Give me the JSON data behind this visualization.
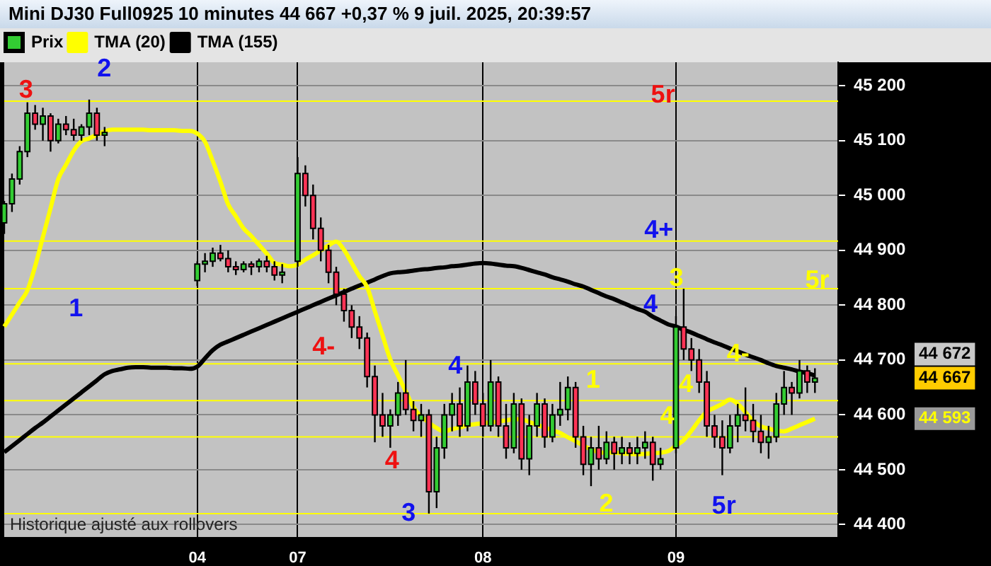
{
  "chart_data": {
    "type": "candlestick",
    "title": "Mini DJ30 Full0925 10 minutes 44 667 +0,37 % 9 juil. 2025, 20:39:57",
    "legend": "top left",
    "grid": true,
    "categories": [
      null,
      null,
      null,
      null,
      null,
      null,
      null,
      null,
      null,
      null,
      null,
      null,
      null,
      null,
      null,
      null,
      null,
      null,
      null,
      null,
      null,
      null,
      null,
      null,
      null,
      "04",
      null,
      null,
      null,
      null,
      null,
      null,
      null,
      null,
      null,
      null,
      null,
      null,
      "07",
      null,
      null,
      null,
      null,
      null,
      null,
      null,
      null,
      null,
      null,
      null,
      null,
      null,
      null,
      null,
      null,
      null,
      null,
      null,
      null,
      null,
      null,
      null,
      "08",
      null,
      null,
      null,
      null,
      null,
      null,
      null,
      null,
      null,
      null,
      null,
      null,
      null,
      null,
      null,
      null,
      null,
      null,
      null,
      null,
      null,
      null,
      null,
      null,
      "09",
      null,
      null,
      null,
      null,
      null,
      null,
      null,
      null,
      null,
      null,
      null,
      null,
      null,
      null,
      null,
      null,
      null,
      null,
      null,
      null,
      null
    ],
    "ylim": [
      44376,
      45243
    ],
    "yticks": [
      {
        "value": 44400,
        "label": "44 400"
      },
      {
        "value": 44500,
        "label": "44 500"
      },
      {
        "value": 44600,
        "label": "44 600"
      },
      {
        "value": 44700,
        "label": "44 700"
      },
      {
        "value": 44800,
        "label": "44 800"
      },
      {
        "value": 44900,
        "label": "44 900"
      },
      {
        "value": 45000,
        "label": "45 000"
      },
      {
        "value": 45100,
        "label": "45 100"
      },
      {
        "value": 45200,
        "label": "45 200"
      }
    ],
    "series": [
      {
        "name": "Prix",
        "ohlc": [
          [
            44950,
            44990,
            44930,
            44985
          ],
          [
            44985,
            45040,
            44970,
            45030
          ],
          [
            45030,
            45090,
            45020,
            45080
          ],
          [
            45080,
            45170,
            45070,
            45150
          ],
          [
            45150,
            45165,
            45120,
            45130
          ],
          [
            45130,
            45160,
            45100,
            45145
          ],
          [
            45145,
            45150,
            45080,
            45100
          ],
          [
            45100,
            45140,
            45095,
            45130
          ],
          [
            45130,
            45145,
            45110,
            45120
          ],
          [
            45120,
            45140,
            45100,
            45110
          ],
          [
            45110,
            45130,
            45100,
            45125
          ],
          [
            45125,
            45175,
            45110,
            45150
          ],
          [
            45150,
            45160,
            45100,
            45110
          ],
          [
            45110,
            45125,
            45090,
            45115
          ],
          null,
          null,
          null,
          null,
          null,
          null,
          null,
          null,
          null,
          null,
          null,
          [
            44845,
            44880,
            44835,
            44875
          ],
          [
            44875,
            44895,
            44860,
            44880
          ],
          [
            44880,
            44905,
            44870,
            44895
          ],
          [
            44895,
            44910,
            44880,
            44885
          ],
          [
            44885,
            44900,
            44860,
            44870
          ],
          [
            44870,
            44880,
            44855,
            44865
          ],
          [
            44865,
            44880,
            44860,
            44875
          ],
          [
            44875,
            44880,
            44855,
            44870
          ],
          [
            44870,
            44885,
            44860,
            44880
          ],
          [
            44880,
            44890,
            44860,
            44870
          ],
          [
            44870,
            44880,
            44845,
            44855
          ],
          [
            44855,
            44875,
            44840,
            44860
          ],
          null,
          [
            44880,
            45070,
            44870,
            45040
          ],
          [
            45040,
            45055,
            44980,
            45000
          ],
          [
            45000,
            45020,
            44920,
            44940
          ],
          [
            44940,
            44960,
            44880,
            44900
          ],
          [
            44900,
            44910,
            44840,
            44860
          ],
          [
            44860,
            44870,
            44800,
            44820
          ],
          [
            44820,
            44830,
            44770,
            44790
          ],
          [
            44790,
            44800,
            44740,
            44760
          ],
          [
            44760,
            44780,
            44720,
            44740
          ],
          [
            44740,
            44750,
            44650,
            44670
          ],
          [
            44670,
            44690,
            44550,
            44600
          ],
          [
            44600,
            44640,
            44560,
            44580
          ],
          [
            44580,
            44610,
            44540,
            44600
          ],
          [
            44600,
            44660,
            44580,
            44640
          ],
          [
            44640,
            44700,
            44600,
            44610
          ],
          [
            44610,
            44625,
            44570,
            44590
          ],
          [
            44590,
            44620,
            44560,
            44600
          ],
          [
            44600,
            44610,
            44420,
            44460
          ],
          [
            44460,
            44560,
            44430,
            44540
          ],
          [
            44540,
            44620,
            44520,
            44600
          ],
          [
            44600,
            44640,
            44570,
            44620
          ],
          [
            44620,
            44650,
            44560,
            44580
          ],
          [
            44580,
            44690,
            44570,
            44660
          ],
          [
            44660,
            44680,
            44600,
            44620
          ],
          [
            44620,
            44640,
            44560,
            44580
          ],
          [
            44580,
            44700,
            44570,
            44660
          ],
          [
            44660,
            44670,
            44560,
            44580
          ],
          [
            44580,
            44620,
            44520,
            44540
          ],
          [
            44540,
            44640,
            44530,
            44620
          ],
          [
            44620,
            44630,
            44500,
            44520
          ],
          [
            44520,
            44600,
            44490,
            44580
          ],
          [
            44580,
            44640,
            44560,
            44620
          ],
          [
            44620,
            44630,
            44540,
            44560
          ],
          [
            44560,
            44620,
            44550,
            44600
          ],
          [
            44600,
            44660,
            44580,
            44610
          ],
          [
            44610,
            44670,
            44590,
            44650
          ],
          [
            44650,
            44660,
            44540,
            44560
          ],
          [
            44560,
            44580,
            44490,
            44510
          ],
          [
            44510,
            44560,
            44470,
            44540
          ],
          [
            44540,
            44580,
            44500,
            44520
          ],
          [
            44520,
            44570,
            44510,
            44550
          ],
          [
            44550,
            44560,
            44500,
            44530
          ],
          [
            44530,
            44560,
            44510,
            44540
          ],
          [
            44540,
            44550,
            44510,
            44530
          ],
          [
            44530,
            44560,
            44510,
            44540
          ],
          [
            44540,
            44570,
            44520,
            44550
          ],
          [
            44550,
            44560,
            44480,
            44510
          ],
          [
            44510,
            44540,
            44500,
            44520
          ],
          null,
          [
            44540,
            44780,
            44530,
            44760
          ],
          [
            44760,
            44830,
            44700,
            44720
          ],
          [
            44720,
            44740,
            44680,
            44700
          ],
          [
            44700,
            44720,
            44640,
            44660
          ],
          [
            44660,
            44680,
            44560,
            44580
          ],
          [
            44580,
            44600,
            44540,
            44560
          ],
          [
            44560,
            44590,
            44490,
            44540
          ],
          [
            44540,
            44600,
            44530,
            44580
          ],
          [
            44580,
            44620,
            44550,
            44600
          ],
          [
            44600,
            44650,
            44570,
            44590
          ],
          [
            44590,
            44620,
            44550,
            44570
          ],
          [
            44570,
            44600,
            44530,
            44550
          ],
          [
            44550,
            44580,
            44520,
            44560
          ],
          [
            44560,
            44640,
            44550,
            44620
          ],
          [
            44620,
            44680,
            44600,
            44650
          ],
          [
            44650,
            44660,
            44600,
            44640
          ],
          [
            44640,
            44700,
            44630,
            44680
          ],
          [
            44680,
            44690,
            44640,
            44660
          ],
          [
            44660,
            44685,
            44640,
            44667
          ],
          null,
          null,
          null
        ],
        "colors": [
          "#33cc33",
          "#33cc33",
          "#33cc33",
          "#33cc33",
          "#ff3355",
          "#33cc33",
          "#ff3355",
          "#33cc33",
          "#ff3355",
          "#ff3355",
          "#33cc33",
          "#33cc33",
          "#ff3355",
          "#33cc33",
          null,
          null,
          null,
          null,
          null,
          null,
          null,
          null,
          null,
          null,
          null,
          "#33cc33",
          "#33cc33",
          "#33cc33",
          "#ff3355",
          "#ff3355",
          "#ff3355",
          "#33cc33",
          "#ff3355",
          "#33cc33",
          "#ff3355",
          "#ff3355",
          "#33cc33",
          null,
          "#33cc33",
          "#ff3355",
          "#ff3355",
          "#ff3355",
          "#ff3355",
          "#ff3355",
          "#ff3355",
          "#ff3355",
          "#ff3355",
          "#ff3355",
          "#ff3355",
          "#ff3355",
          "#33cc33",
          "#33cc33",
          "#ff3355",
          "#ff3355",
          "#33cc33",
          "#ff3355",
          "#33cc33",
          "#33cc33",
          "#33cc33",
          "#ff3355",
          "#33cc33",
          "#ff3355",
          "#ff3355",
          "#33cc33",
          "#ff3355",
          "#ff3355",
          "#33cc33",
          "#ff3355",
          "#33cc33",
          "#33cc33",
          "#ff3355",
          "#33cc33",
          "#33cc33",
          "#33cc33",
          "#ff3355",
          "#ff3355",
          "#33cc33",
          "#ff3355",
          "#33cc33",
          "#ff3355",
          "#33cc33",
          "#ff3355",
          "#33cc33",
          "#33cc33",
          "#ff3355",
          "#33cc33",
          null,
          "#33cc33",
          "#ff3355",
          "#ff3355",
          "#ff3355",
          "#ff3355",
          "#ff3355",
          "#ff3355",
          "#33cc33",
          "#33cc33",
          "#ff3355",
          "#ff3355",
          "#ff3355",
          "#33cc33",
          "#33cc33",
          "#33cc33",
          "#ff3355",
          "#33cc33",
          "#ff3355",
          "#33cc33",
          null,
          null,
          null
        ]
      },
      {
        "name": "TMA (20)",
        "type": "line",
        "color": "#ffff00",
        "values": [
          44761,
          44783,
          44805,
          44827,
          44871,
          44924,
          44977,
          45030,
          45056,
          45082,
          45099,
          45104,
          45111,
          45117,
          45120,
          45120,
          45120,
          45120,
          45120,
          45119,
          45119,
          45119,
          45119,
          45118,
          45118,
          45113,
          45098,
          45063,
          45025,
          44984,
          44962,
          44940,
          44926,
          44910,
          44894,
          44877,
          44874,
          44871,
          44874,
          44883,
          44891,
          44900,
          44909,
          44916,
          44901,
          44877,
          44853,
          44833,
          44789,
          44745,
          44701,
          44672,
          44643,
          44614,
          44597,
          44586,
          44576,
          44570,
          44574,
          44577,
          44581,
          44583,
          44585,
          44586,
          44588,
          44590,
          44592,
          44592,
          44587,
          44582,
          44577,
          44572,
          44567,
          44559,
          44552,
          44544,
          44537,
          44532,
          44531,
          44531,
          44530,
          44529,
          44528,
          44529,
          44530,
          44531,
          44534,
          44544,
          44554,
          44571,
          44590,
          44606,
          44613,
          44620,
          44628,
          44620,
          44605,
          44589,
          44579,
          44575,
          44571,
          44570,
          44575,
          44581,
          44587,
          44593,
          null,
          null,
          null
        ]
      },
      {
        "name": "TMA (155)",
        "type": "line",
        "color": "#000000",
        "values": [
          44532,
          44543,
          44554,
          44565,
          44576,
          44586,
          44597,
          44608,
          44619,
          44630,
          44641,
          44652,
          44663,
          44674,
          44680,
          44683,
          44686,
          44687,
          44687,
          44686,
          44686,
          44686,
          44685,
          44685,
          44684,
          44688,
          44703,
          44718,
          44728,
          44734,
          44740,
          44746,
          44752,
          44758,
          44764,
          44770,
          44776,
          44782,
          44788,
          44794,
          44800,
          44806,
          44812,
          44818,
          44824,
          44830,
          44836,
          44841,
          44847,
          44853,
          44858,
          44860,
          44861,
          44863,
          44865,
          44866,
          44868,
          44869,
          44871,
          44872,
          44874,
          44876,
          44877,
          44876,
          44874,
          44872,
          44871,
          44868,
          44864,
          44860,
          44856,
          44851,
          44847,
          44843,
          44838,
          44834,
          44828,
          44822,
          44816,
          44811,
          44805,
          44799,
          44793,
          44788,
          44779,
          44772,
          44765,
          44761,
          44755,
          44750,
          44744,
          44738,
          44732,
          44727,
          44721,
          44716,
          44710,
          44705,
          44700,
          44694,
          44689,
          44686,
          44683,
          44679,
          44676,
          44672,
          null,
          null,
          null
        ]
      }
    ],
    "ref_lines": [
      {
        "axis": "y",
        "value": 45172,
        "color": "#ffff00"
      },
      {
        "axis": "y",
        "value": 44917,
        "color": "#ffff00"
      },
      {
        "axis": "y",
        "value": 44830,
        "color": "#ffff00"
      },
      {
        "axis": "y",
        "value": 44693,
        "color": "#ffff00"
      },
      {
        "axis": "y",
        "value": 44626,
        "color": "#ffff00"
      },
      {
        "axis": "y",
        "value": 44560,
        "color": "#ffff00"
      },
      {
        "axis": "y",
        "value": 44420,
        "color": "#ffff00"
      }
    ],
    "annotations": [
      "3",
      "2",
      "1",
      "4-",
      "4",
      "3",
      "4",
      "1",
      "2",
      "5r",
      "4+",
      "3",
      "4",
      "4-",
      "4",
      "4",
      "5r",
      "5r",
      "44 672",
      "44 667",
      "44 593",
      "Historique ajusté aux rollovers"
    ]
  }
}
